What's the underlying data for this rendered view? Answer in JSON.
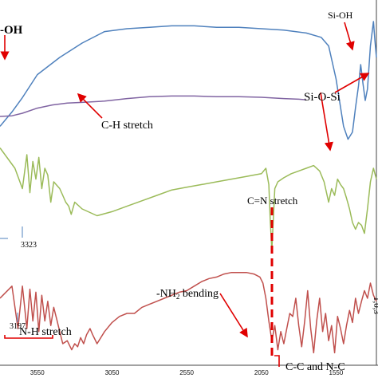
{
  "chart_data": {
    "type": "line",
    "title": "",
    "xlabel": "",
    "ylabel": "",
    "x_ticks": [
      "3550",
      "3050",
      "2550",
      "2050",
      "1550"
    ],
    "axis_edge_label": "1,0,3",
    "annotations": {
      "oh": "-OH",
      "sioh": "Si-OH",
      "siosi": "Si-O-Si",
      "ch": "C-H stretch",
      "cn": "C=N stretch",
      "nh2_prefix": "-NH",
      "nh2_sub": "2",
      "nh2_suffix": " bending",
      "nh": "N-H stretch",
      "cc": "C-C and N-C",
      "peak_3323": "3323",
      "peak_3197": "3197"
    },
    "colors": {
      "blue": "#4f81bd",
      "purple": "#8064a2",
      "green": "#9bbb59",
      "red": "#c0504d",
      "arrow": "#e00000"
    },
    "series": [
      {
        "color": "#4f81bd",
        "x": [
          3800,
          3720,
          3650,
          3550,
          3400,
          3250,
          3100,
          2950,
          2800,
          2650,
          2500,
          2350,
          2200,
          2050,
          1900,
          1750,
          1650,
          1600,
          1550,
          1500,
          1470,
          1440,
          1420,
          1400,
          1385,
          1370,
          1355,
          1340,
          1320,
          1300,
          1290,
          1280
        ],
        "y": [
          12,
          22,
          32,
          48,
          60,
          70,
          78,
          80,
          81,
          82,
          82,
          81,
          81,
          80,
          79,
          77,
          74,
          68,
          45,
          12,
          3,
          8,
          25,
          40,
          55,
          42,
          30,
          38,
          68,
          85,
          72,
          60
        ]
      },
      {
        "color": "#8064a2",
        "x": [
          3800,
          3720,
          3650,
          3550,
          3450,
          3350,
          3250,
          3100,
          2950,
          2800,
          2650,
          2500,
          2350,
          2200,
          2050,
          1900,
          1800,
          1750
        ],
        "y": [
          30,
          31,
          35,
          43,
          48,
          51,
          52,
          54,
          58,
          61,
          62,
          62,
          61,
          61,
          60,
          58,
          57,
          56
        ]
      },
      {
        "color": "#9bbb59",
        "x": [
          3800,
          3700,
          3650,
          3620,
          3600,
          3580,
          3560,
          3540,
          3520,
          3500,
          3480,
          3460,
          3440,
          3400,
          3380,
          3360,
          3340,
          3323,
          3300,
          3250,
          3150,
          3050,
          2950,
          2850,
          2750,
          2650,
          2550,
          2450,
          2350,
          2250,
          2150,
          2050,
          2020,
          2000,
          1990,
          1980,
          1960,
          1940,
          1900,
          1850,
          1800,
          1750,
          1700,
          1660,
          1630,
          1600,
          1580,
          1560,
          1540,
          1520,
          1500,
          1480,
          1460,
          1440,
          1420,
          1400,
          1380,
          1360,
          1340,
          1320,
          1300,
          1280
        ],
        "y": [
          85,
          70,
          55,
          80,
          52,
          75,
          62,
          78,
          55,
          70,
          65,
          45,
          60,
          55,
          50,
          45,
          42,
          36,
          45,
          40,
          35,
          38,
          42,
          46,
          50,
          54,
          56,
          58,
          60,
          62,
          64,
          66,
          70,
          58,
          30,
          10,
          55,
          60,
          63,
          66,
          68,
          70,
          72,
          68,
          60,
          45,
          55,
          50,
          62,
          58,
          55,
          48,
          40,
          30,
          25,
          30,
          28,
          22,
          40,
          60,
          70,
          62
        ]
      },
      {
        "color": "#c0504d",
        "x": [
          3800,
          3720,
          3680,
          3650,
          3620,
          3600,
          3580,
          3560,
          3540,
          3520,
          3500,
          3480,
          3460,
          3440,
          3420,
          3400,
          3380,
          3350,
          3320,
          3300,
          3280,
          3260,
          3240,
          3220,
          3197,
          3180,
          3150,
          3100,
          3050,
          3000,
          2950,
          2900,
          2850,
          2800,
          2750,
          2700,
          2650,
          2600,
          2550,
          2500,
          2450,
          2400,
          2350,
          2300,
          2250,
          2200,
          2150,
          2100,
          2060,
          2040,
          2020,
          2000,
          1980,
          1960,
          1940,
          1920,
          1900,
          1880,
          1860,
          1840,
          1820,
          1800,
          1780,
          1760,
          1740,
          1720,
          1700,
          1680,
          1660,
          1640,
          1620,
          1600,
          1580,
          1560,
          1540,
          1520,
          1500,
          1480,
          1460,
          1440,
          1420,
          1400,
          1380,
          1360,
          1340,
          1320,
          1300,
          1280
        ],
        "y": [
          40,
          48,
          20,
          48,
          20,
          46,
          25,
          44,
          18,
          42,
          25,
          38,
          22,
          34,
          26,
          18,
          10,
          12,
          6,
          10,
          8,
          14,
          10,
          16,
          20,
          16,
          10,
          18,
          24,
          28,
          30,
          30,
          34,
          36,
          38,
          40,
          42,
          44,
          45,
          48,
          51,
          53,
          54,
          56,
          57,
          57,
          57,
          56,
          54,
          50,
          40,
          25,
          12,
          22,
          6,
          18,
          10,
          20,
          30,
          28,
          40,
          22,
          8,
          25,
          45,
          20,
          4,
          25,
          40,
          18,
          30,
          12,
          22,
          4,
          28,
          20,
          10,
          22,
          32,
          24,
          40,
          30,
          38,
          45,
          40,
          50,
          42,
          38
        ]
      }
    ]
  }
}
